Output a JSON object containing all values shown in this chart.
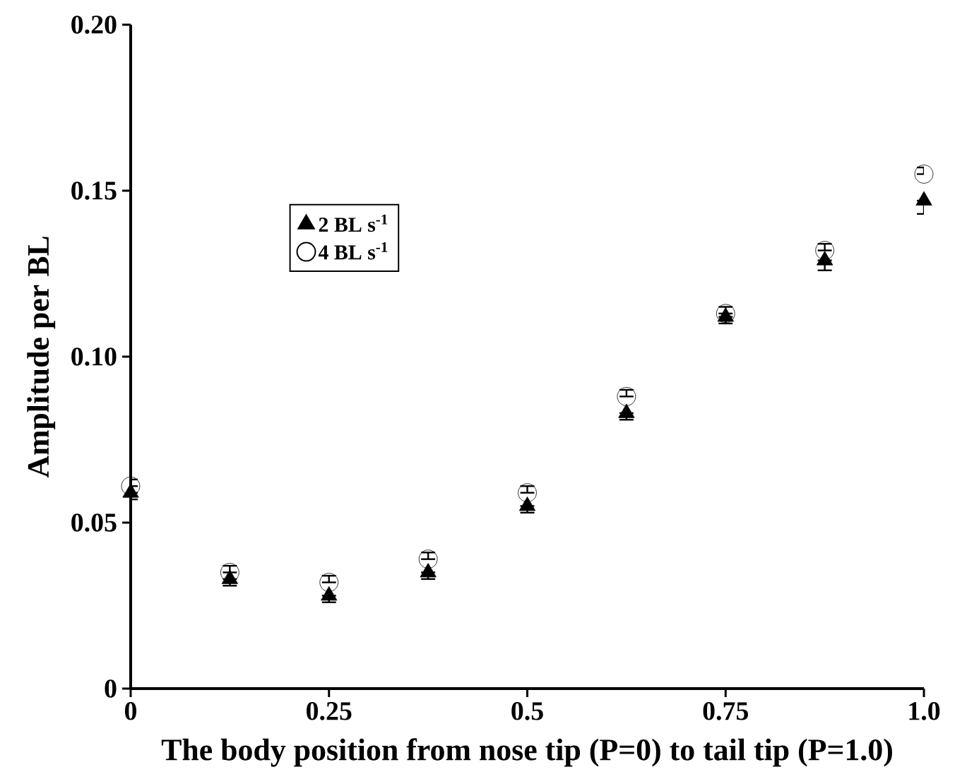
{
  "chart_data": {
    "type": "scatter",
    "xlabel": "The body position from nose tip (P=0) to tail tip (P=1.0)",
    "ylabel": "Amplitude per BL",
    "x": [
      0,
      0.125,
      0.25,
      0.375,
      0.5,
      0.625,
      0.75,
      0.875,
      1.0
    ],
    "series": [
      {
        "name": "2 BL s$^{-1}$",
        "color": "#000000",
        "marker": "triangle",
        "values": [
          0.059,
          0.033,
          0.028,
          0.035,
          0.055,
          0.083,
          0.112,
          0.129,
          0.147
        ],
        "errors": [
          [
            0.057,
            0.059
          ],
          [
            0.031,
            0.033
          ],
          [
            0.026,
            0.028
          ],
          [
            0.033,
            0.035
          ],
          [
            0.053,
            0.055
          ],
          [
            0.081,
            0.083
          ],
          [
            0.11,
            0.112
          ],
          [
            0.126,
            0.129
          ],
          [
            0.143,
            0.147
          ]
        ]
      },
      {
        "name": "4 BL s$^{-1}$",
        "color": "#000000",
        "marker": "circle",
        "values": [
          0.061,
          0.035,
          0.032,
          0.039,
          0.059,
          0.088,
          0.113,
          0.132,
          0.155
        ],
        "errors": [
          [
            0.061,
            0.063
          ],
          [
            0.035,
            0.037
          ],
          [
            0.032,
            0.034
          ],
          [
            0.039,
            0.041
          ],
          [
            0.059,
            0.061
          ],
          [
            0.088,
            0.09
          ],
          [
            0.113,
            0.115
          ],
          [
            0.132,
            0.134
          ],
          [
            0.155,
            0.157
          ]
        ]
      }
    ],
    "xlim": [
      0,
      1.0
    ],
    "ylim": [
      0,
      0.2
    ],
    "xticks": [
      0,
      0.25,
      0.5,
      0.75,
      {
        "value": 1.0,
        "label": "1.0"
      }
    ],
    "yticks": [
      0,
      0.05,
      {
        "value": 0.1,
        "label": "0.10"
      },
      0.15,
      {
        "value": 0.2,
        "label": "0.20"
      }
    ],
    "legend": "top left",
    "grid": false
  }
}
